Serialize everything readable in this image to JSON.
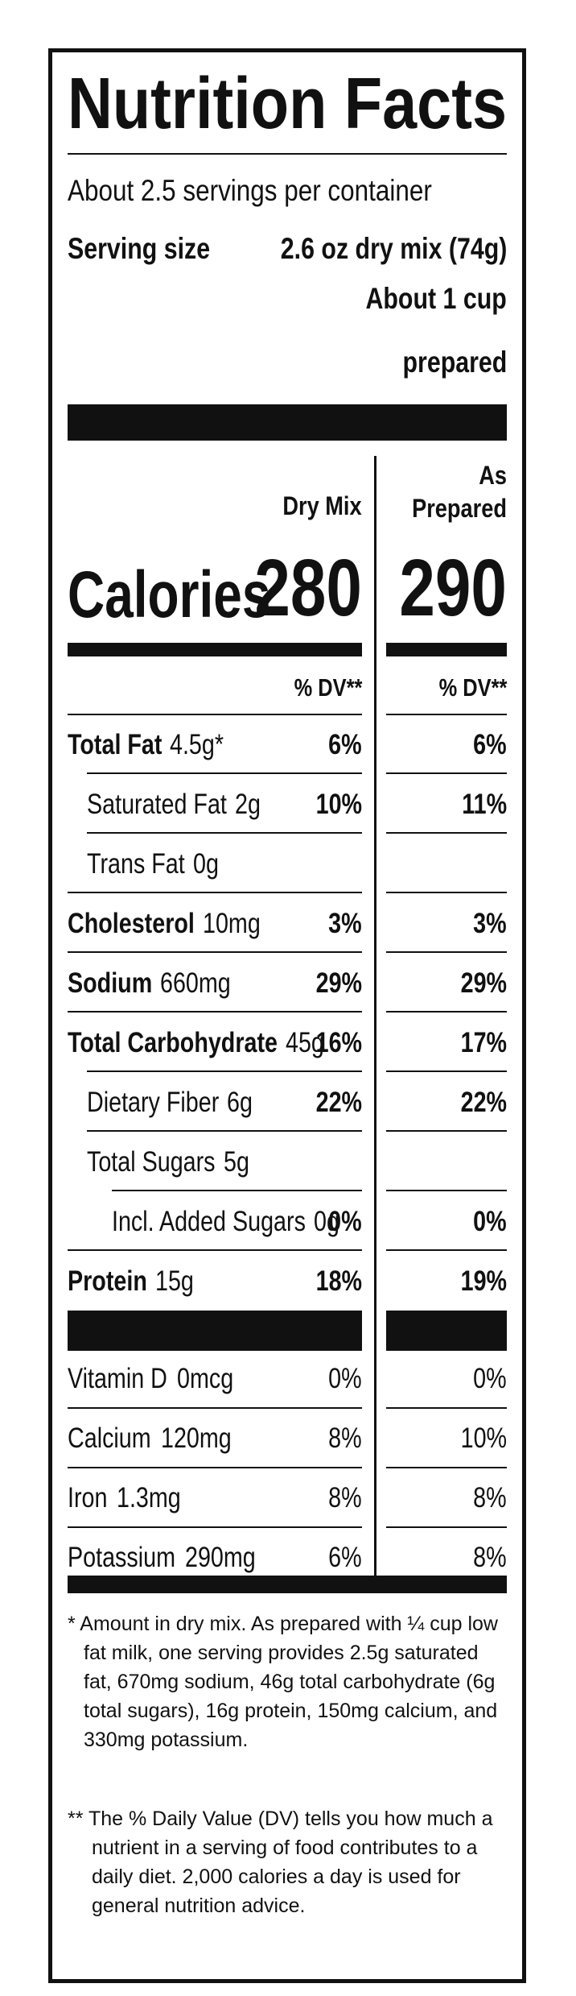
{
  "title": "Nutrition Facts",
  "servings": "About 2.5 servings per container",
  "serving_size": {
    "label": "Serving size",
    "value": "2.6 oz dry mix (74g)",
    "prepared_lines": [
      "About 1 cup",
      "prepared"
    ]
  },
  "columns": [
    "Dry Mix",
    "As Prepared"
  ],
  "calories": {
    "label": "Calories",
    "dry": 280,
    "prepared": 290
  },
  "dv_header": [
    "% DV**",
    "% DV**"
  ],
  "nutrients": [
    {
      "name": "Total Fat",
      "amount": "4.5g*",
      "dry": "6%",
      "prepared": "6%",
      "bold": true,
      "indent": 0
    },
    {
      "name": "Saturated Fat",
      "amount": "2g",
      "dry": "10%",
      "prepared": "11%",
      "bold": false,
      "indent": 1
    },
    {
      "name": "Trans Fat",
      "amount": "0g",
      "bold": false,
      "indent": 1
    },
    {
      "name": "Cholesterol",
      "amount": "10mg",
      "dry": "3%",
      "prepared": "3%",
      "bold": true,
      "indent": 0
    },
    {
      "name": "Sodium",
      "amount": "660mg",
      "dry": "29%",
      "prepared": "29%",
      "bold": true,
      "indent": 0
    },
    {
      "name": "Total Carbohydrate",
      "amount": "45g",
      "dry": "16%",
      "prepared": "17%",
      "bold": true,
      "indent": 0
    },
    {
      "name": "Dietary Fiber",
      "amount": "6g",
      "dry": "22%",
      "prepared": "22%",
      "bold": false,
      "indent": 1
    },
    {
      "name": "Total Sugars",
      "amount": "5g",
      "bold": false,
      "indent": 1
    },
    {
      "name": "Incl. Added Sugars",
      "amount": "0g",
      "dry": "0%",
      "prepared": "0%",
      "bold": false,
      "indent": 2
    },
    {
      "name": "Protein",
      "amount": "15g",
      "dry": "18%",
      "prepared": "19%",
      "bold": true,
      "indent": 0
    }
  ],
  "vitamins": [
    {
      "name": "Vitamin D",
      "amount": "0mcg",
      "dry": "0%",
      "prepared": "0%"
    },
    {
      "name": "Calcium",
      "amount": "120mg",
      "dry": "8%",
      "prepared": "10%"
    },
    {
      "name": "Iron",
      "amount": "1.3mg",
      "dry": "8%",
      "prepared": "8%"
    },
    {
      "name": "Potassium",
      "amount": "290mg",
      "dry": "6%",
      "prepared": "8%"
    }
  ],
  "footnotes": [
    "* Amount in dry mix. As prepared with ¼ cup low fat milk, one serving provides 2.5g saturated fat, 670mg sodium, 46g total carbohydrate (6g total sugars), 16g protein, 150mg calcium, and 330mg potassium.",
    "** The % Daily Value (DV) tells you how much a nutrient in a serving of food contributes to a daily diet. 2,000 calories a day is used for general nutrition advice."
  ]
}
